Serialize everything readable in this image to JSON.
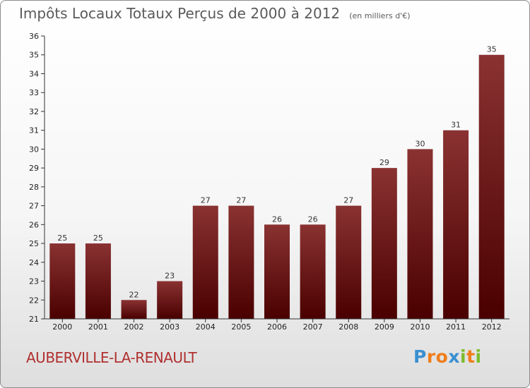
{
  "title": "Impôts Locaux Totaux Perçus de 2000 à 2012",
  "unit": "(en milliers d'€)",
  "commune": "AUBERVILLE-LA-RENAULT",
  "logo": {
    "text": "Proxiti",
    "letters": [
      "P",
      "r",
      "o",
      "x",
      "i",
      "t",
      "i"
    ],
    "colors": [
      "#3a8fd0",
      "#f07d1a",
      "#f07d1a",
      "#3a8fd0",
      "#7cbc2c",
      "#f07d1a",
      "#7cbc2c"
    ]
  },
  "colors": {
    "bar_top": "#8a3232",
    "bar_bottom": "#4a0000",
    "commune_text": "#b03030"
  },
  "chart_data": {
    "type": "bar",
    "categories": [
      "2000",
      "2001",
      "2002",
      "2003",
      "2004",
      "2005",
      "2006",
      "2007",
      "2008",
      "2009",
      "2010",
      "2011",
      "2012"
    ],
    "values": [
      25,
      25,
      22,
      23,
      27,
      27,
      26,
      26,
      27,
      29,
      30,
      31,
      35
    ],
    "ylim": [
      21,
      36
    ],
    "yticks": [
      21,
      22,
      23,
      24,
      25,
      26,
      27,
      28,
      29,
      30,
      31,
      32,
      33,
      34,
      35,
      36
    ],
    "grid": false
  }
}
